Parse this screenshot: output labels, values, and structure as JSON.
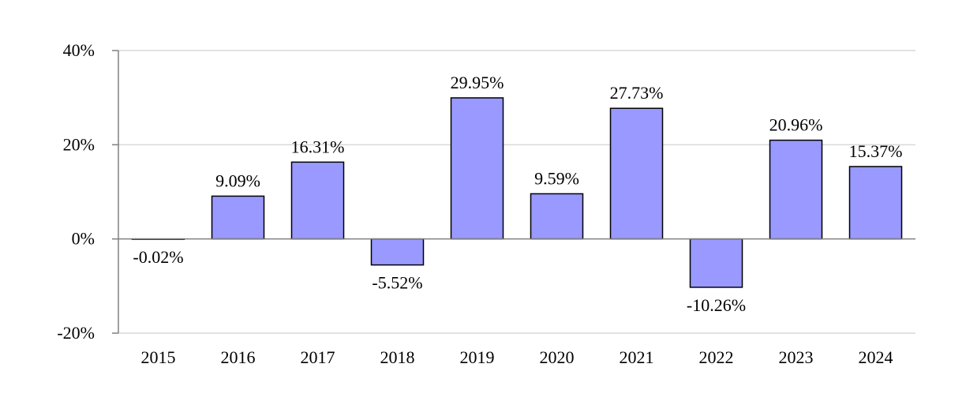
{
  "chart_data": {
    "type": "bar",
    "title": "",
    "xlabel": "",
    "ylabel": "",
    "categories": [
      "2015",
      "2016",
      "2017",
      "2018",
      "2019",
      "2020",
      "2021",
      "2022",
      "2023",
      "2024"
    ],
    "values": [
      -0.02,
      9.09,
      16.31,
      -5.52,
      29.95,
      9.59,
      27.73,
      -10.26,
      20.96,
      15.37
    ],
    "value_labels": [
      "-0.02%",
      "9.09%",
      "16.31%",
      "-5.52%",
      "29.95%",
      "9.59%",
      "27.73%",
      "-10.26%",
      "20.96%",
      "15.37%"
    ],
    "ylim": [
      -20,
      40
    ],
    "yticks": [
      -20,
      0,
      20,
      40
    ],
    "ytick_labels": [
      "-20%",
      "0%",
      "20%",
      "40%"
    ],
    "grid": true,
    "legend": "none",
    "colors": {
      "bar_fill": "#9999ff",
      "bar_stroke": "#000000",
      "grid": "#d9d9d9",
      "axis": "#808080"
    }
  }
}
